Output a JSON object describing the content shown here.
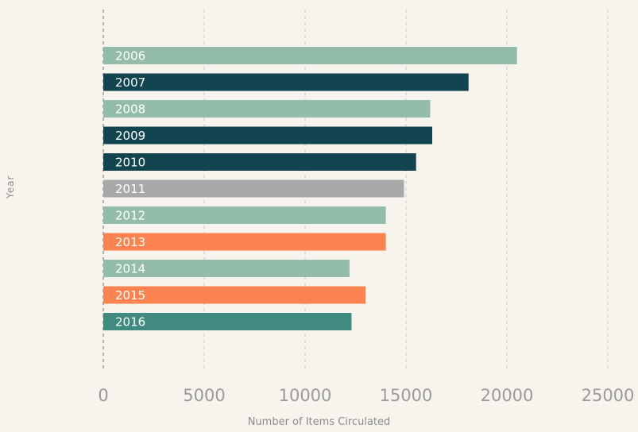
{
  "chart_data": {
    "type": "bar",
    "orientation": "horizontal",
    "title": "",
    "xlabel": "Number of Items Circulated",
    "ylabel": "Year",
    "xlim": [
      0,
      25000
    ],
    "x_ticks": [
      "0",
      "5000",
      "10000",
      "15000",
      "20000",
      "25000"
    ],
    "grid": "vertical-dashed",
    "categories": [
      "2006",
      "2007",
      "2008",
      "2009",
      "2010",
      "2011",
      "2012",
      "2013",
      "2014",
      "2015",
      "2016"
    ],
    "values": [
      20500,
      18100,
      16200,
      16300,
      15500,
      14900,
      14000,
      14000,
      12200,
      13000,
      12300
    ],
    "colors": [
      "#93bcaa",
      "#12454f",
      "#93bcaa",
      "#12454f",
      "#12454f",
      "#a9a9a9",
      "#93bcaa",
      "#fa8350",
      "#93bcaa",
      "#fa8350",
      "#418a7f"
    ]
  }
}
